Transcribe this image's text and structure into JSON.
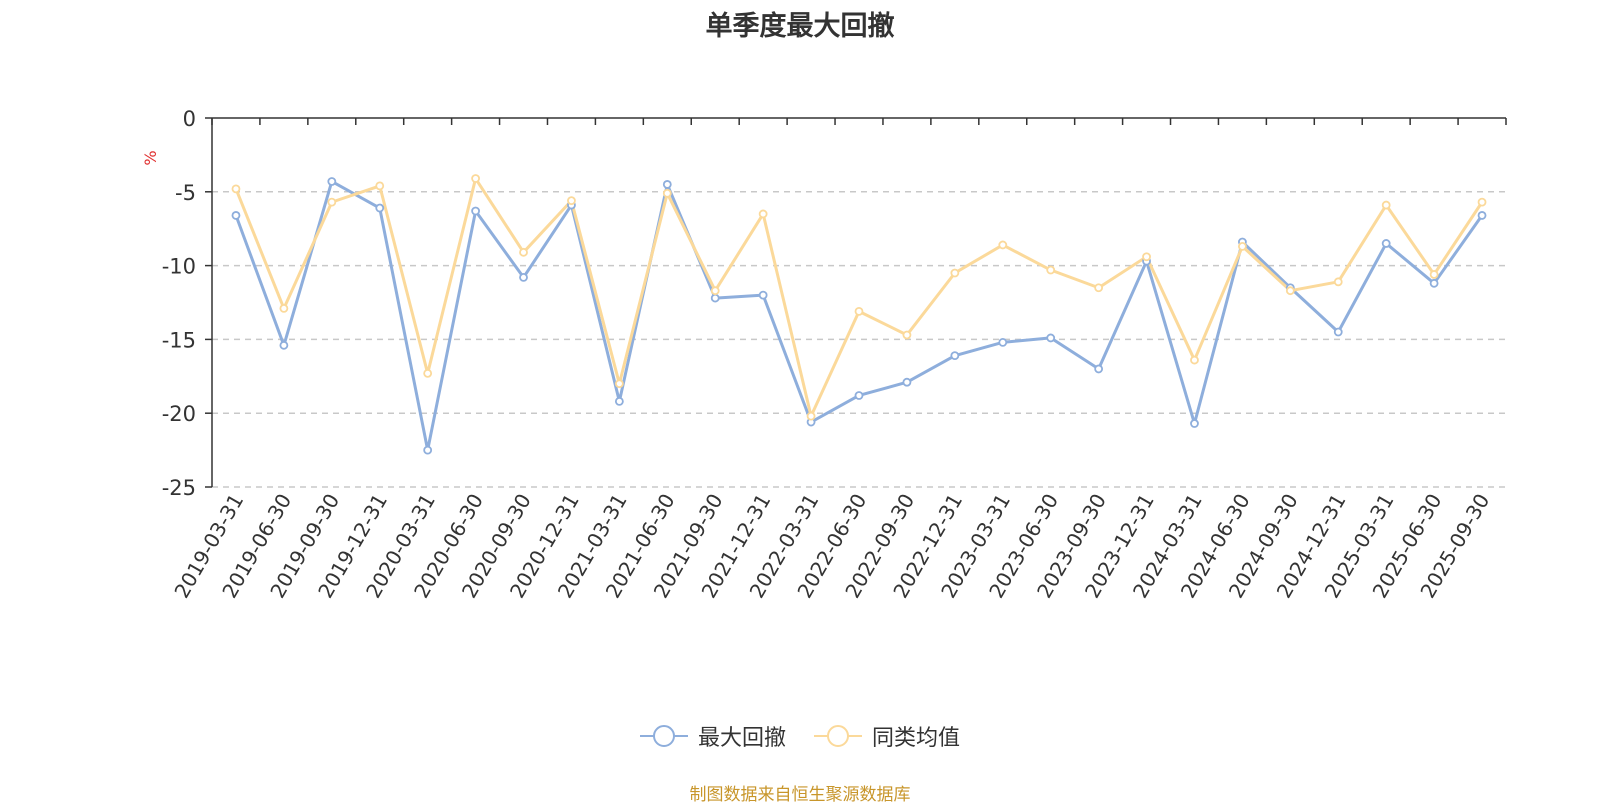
{
  "chart_data": {
    "type": "line",
    "title": "单季度最大回撤",
    "ylabel": "%",
    "xlabel": "",
    "ylim": [
      -25,
      0
    ],
    "yticks": [
      "0",
      "-5",
      "-10",
      "-15",
      "-20",
      "-25"
    ],
    "grid": true,
    "legend_position": "bottom",
    "categories": [
      "2019-03-31",
      "2019-06-30",
      "2019-09-30",
      "2019-12-31",
      "2020-03-31",
      "2020-06-30",
      "2020-09-30",
      "2020-12-31",
      "2021-03-31",
      "2021-06-30",
      "2021-09-30",
      "2021-12-31",
      "2022-03-31",
      "2022-06-30",
      "2022-09-30",
      "2022-12-31",
      "2023-03-31",
      "2023-06-30",
      "2023-09-30",
      "2023-12-31",
      "2024-03-31",
      "2024-06-30",
      "2024-09-30",
      "2024-12-31",
      "2025-03-31",
      "2025-06-30",
      "2025-09-30"
    ],
    "series": [
      {
        "name": "最大回撤",
        "color": "#8eaedc",
        "values": [
          -6.6,
          -15.4,
          -4.3,
          -6.1,
          -22.5,
          -6.3,
          -10.8,
          -5.9,
          -19.2,
          -4.5,
          -12.2,
          -12.0,
          -20.6,
          -18.8,
          -17.9,
          -16.1,
          -15.2,
          -14.9,
          -17.0,
          -9.7,
          -20.7,
          -8.4,
          -11.5,
          -14.5,
          -8.5,
          -11.2,
          -6.6
        ]
      },
      {
        "name": "同类均值",
        "color": "#fbd99a",
        "values": [
          -4.8,
          -12.9,
          -5.7,
          -4.6,
          -17.3,
          -4.1,
          -9.1,
          -5.6,
          -18.0,
          -5.1,
          -11.7,
          -6.5,
          -20.2,
          -13.1,
          -14.7,
          -10.5,
          -8.6,
          -10.3,
          -11.5,
          -9.4,
          -16.4,
          -8.7,
          -11.7,
          -11.1,
          -5.9,
          -10.6,
          -5.7
        ]
      }
    ]
  },
  "footer": {
    "source": "制图数据来自恒生聚源数据库"
  }
}
